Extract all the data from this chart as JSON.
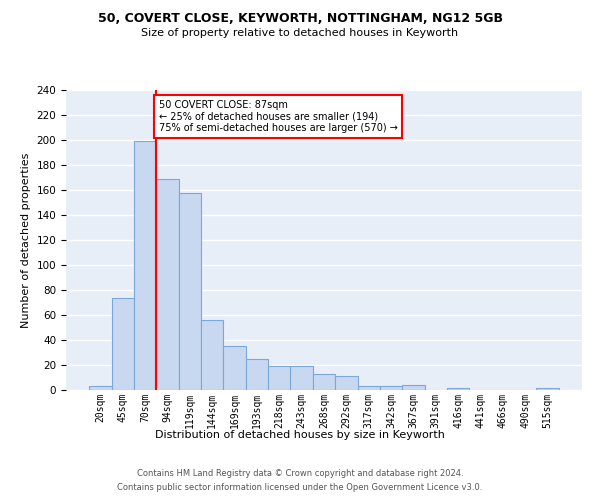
{
  "title1": "50, COVERT CLOSE, KEYWORTH, NOTTINGHAM, NG12 5GB",
  "title2": "Size of property relative to detached houses in Keyworth",
  "xlabel": "Distribution of detached houses by size in Keyworth",
  "ylabel": "Number of detached properties",
  "bar_labels": [
    "20sqm",
    "45sqm",
    "70sqm",
    "94sqm",
    "119sqm",
    "144sqm",
    "169sqm",
    "193sqm",
    "218sqm",
    "243sqm",
    "268sqm",
    "292sqm",
    "317sqm",
    "342sqm",
    "367sqm",
    "391sqm",
    "416sqm",
    "441sqm",
    "466sqm",
    "490sqm",
    "515sqm"
  ],
  "bar_values": [
    3,
    74,
    199,
    169,
    158,
    56,
    35,
    25,
    19,
    19,
    13,
    11,
    3,
    3,
    4,
    0,
    2,
    0,
    0,
    0,
    2
  ],
  "bar_color": "#c8d8f0",
  "bar_edge_color": "#7aa8d8",
  "annotation_text": "50 COVERT CLOSE: 87sqm\n← 25% of detached houses are smaller (194)\n75% of semi-detached houses are larger (570) →",
  "annotation_box_color": "white",
  "annotation_box_edge_color": "red",
  "red_line_index": 2.5,
  "ylim": [
    0,
    240
  ],
  "yticks": [
    0,
    20,
    40,
    60,
    80,
    100,
    120,
    140,
    160,
    180,
    200,
    220,
    240
  ],
  "background_color": "#e8eef8",
  "grid_color": "#ffffff",
  "footer_line1": "Contains HM Land Registry data © Crown copyright and database right 2024.",
  "footer_line2": "Contains public sector information licensed under the Open Government Licence v3.0."
}
